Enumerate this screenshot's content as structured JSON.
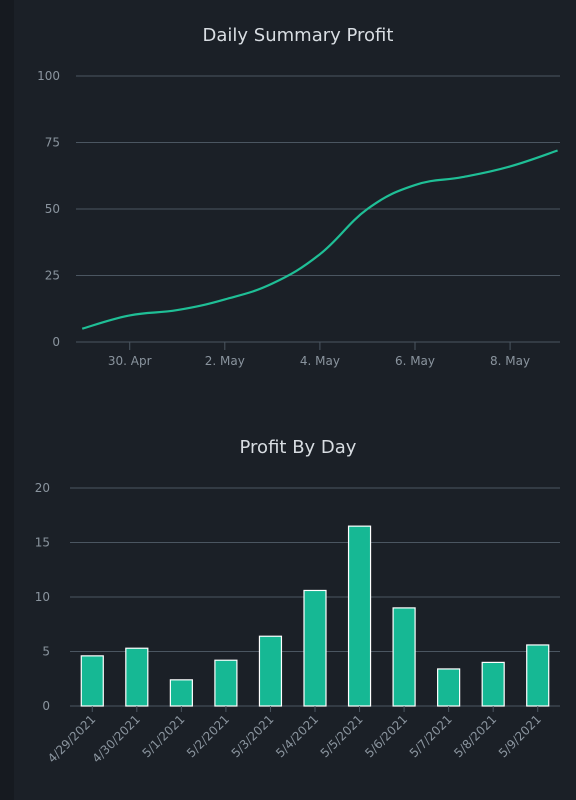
{
  "chart_data": [
    {
      "type": "line",
      "title": "Daily Summary Profit",
      "x": [
        "2021-04-29",
        "2021-04-30",
        "2021-05-01",
        "2021-05-02",
        "2021-05-03",
        "2021-05-04",
        "2021-05-05",
        "2021-05-06",
        "2021-05-07",
        "2021-05-08",
        "2021-05-09"
      ],
      "x_tick_labels": [
        "30. Apr",
        "2. May",
        "4. May",
        "6. May",
        "8. May"
      ],
      "x_tick_dates": [
        "2021-04-30",
        "2021-05-02",
        "2021-05-04",
        "2021-05-06",
        "2021-05-08"
      ],
      "values": [
        5,
        10,
        12,
        16,
        22,
        33,
        50,
        59,
        62,
        66,
        72
      ],
      "ylim": [
        0,
        100
      ],
      "yticks": [
        0,
        25,
        50,
        75,
        100
      ],
      "grid": true,
      "color": "#1fbf96"
    },
    {
      "type": "bar",
      "title": "Profit By Day",
      "categories": [
        "4/29/2021",
        "4/30/2021",
        "5/1/2021",
        "5/2/2021",
        "5/3/2021",
        "5/4/2021",
        "5/5/2021",
        "5/6/2021",
        "5/7/2021",
        "5/8/2021",
        "5/9/2021"
      ],
      "values": [
        4.6,
        5.3,
        2.4,
        4.2,
        6.4,
        10.6,
        16.5,
        9.0,
        3.4,
        4.0,
        5.6
      ],
      "ylim": [
        0,
        20
      ],
      "yticks": [
        0,
        5,
        10,
        15,
        20
      ],
      "grid": true,
      "color": "#16b894"
    }
  ]
}
